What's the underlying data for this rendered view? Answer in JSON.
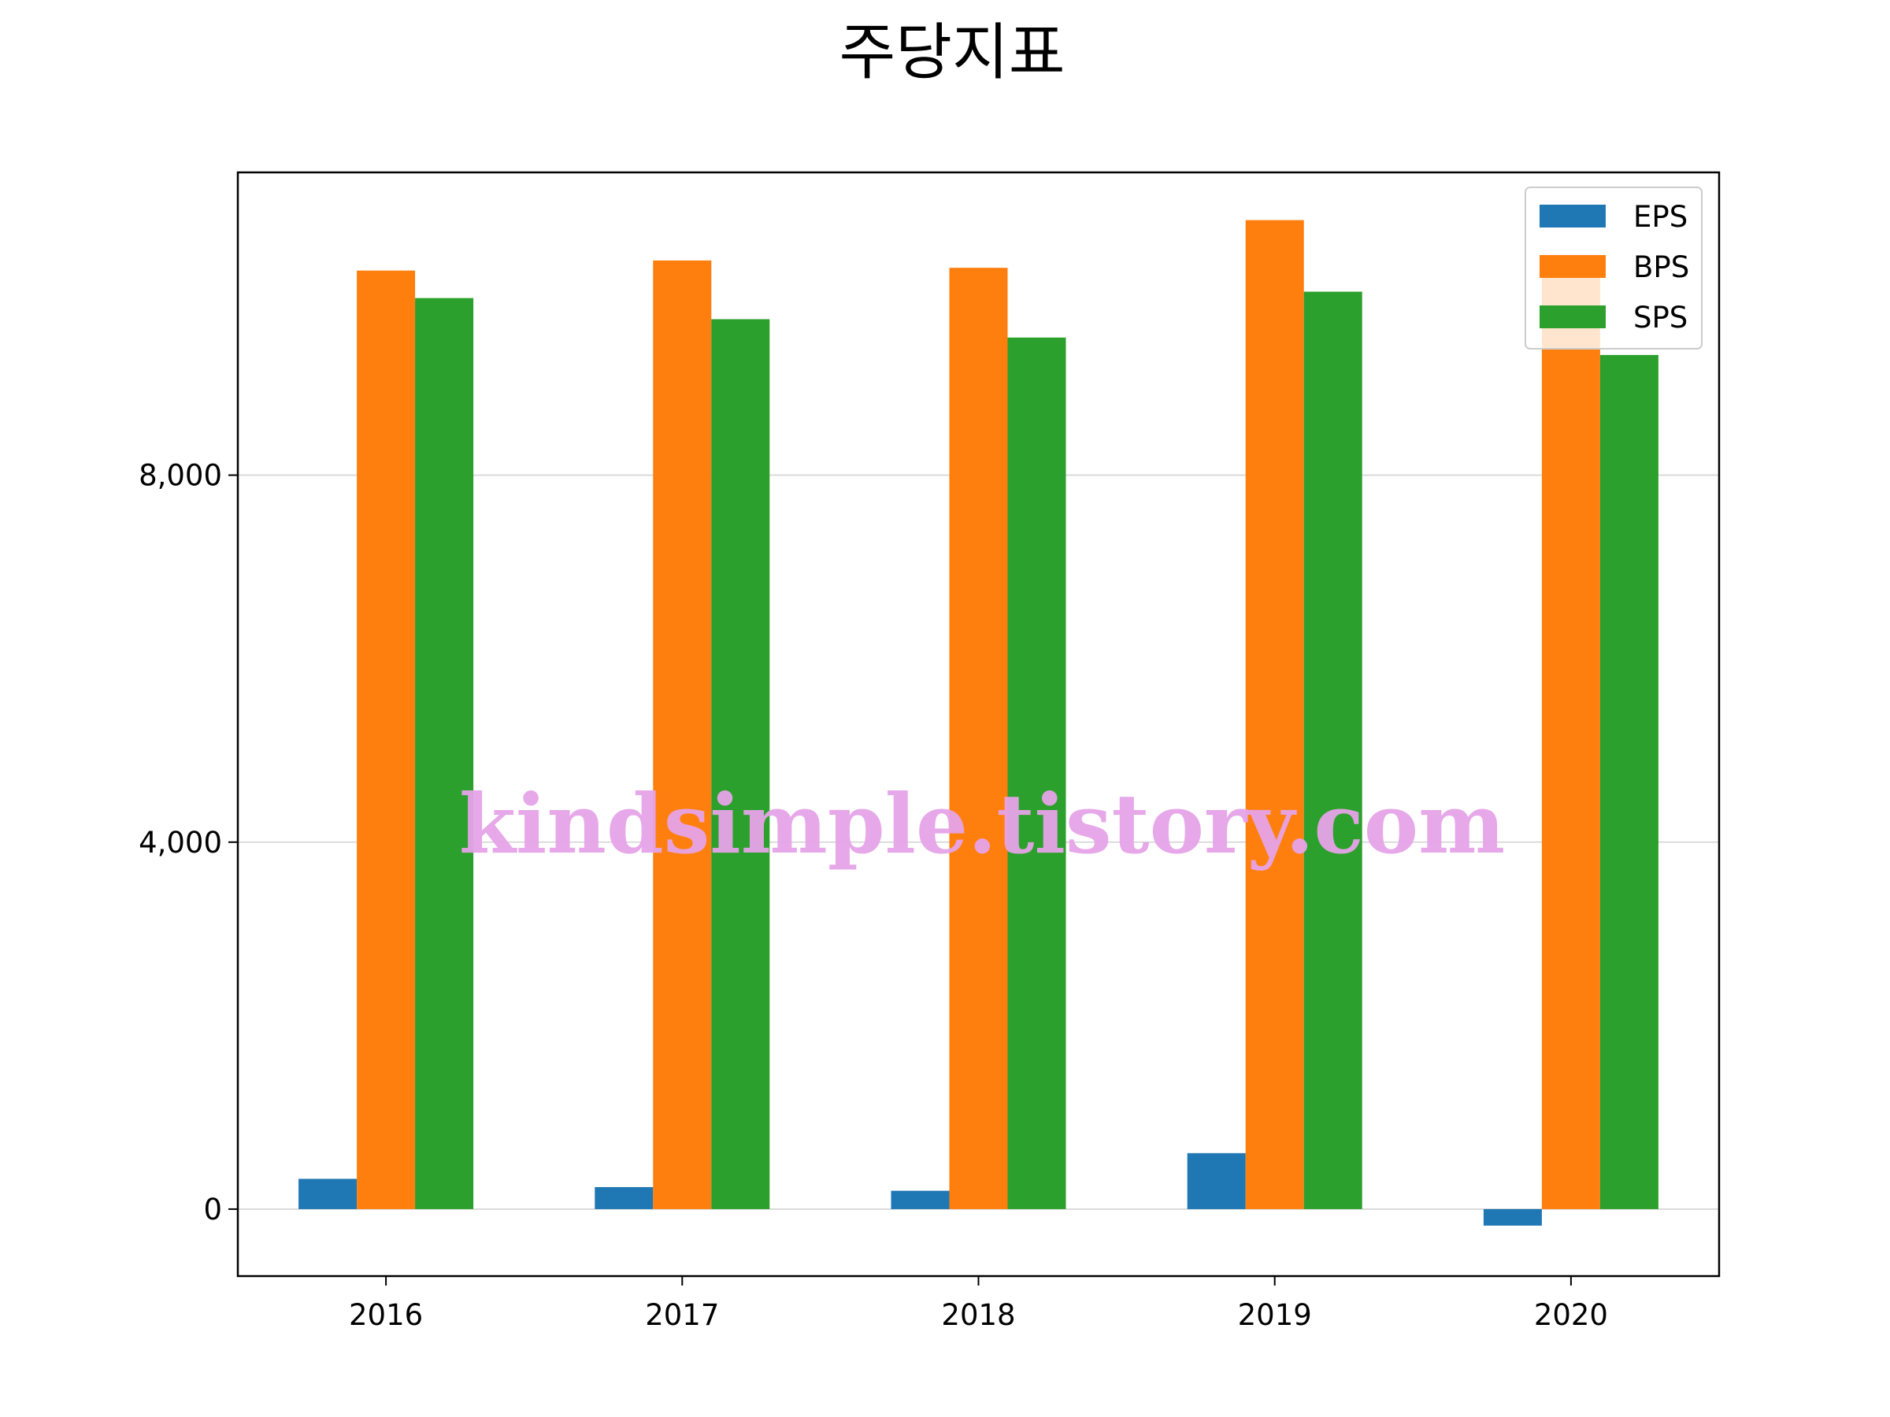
{
  "chart_data": {
    "type": "bar",
    "title": "주당지표",
    "categories": [
      "2016",
      "2017",
      "2018",
      "2019",
      "2020"
    ],
    "series": [
      {
        "name": "EPS",
        "color": "#1f77b4",
        "values": [
          330,
          240,
          200,
          610,
          -180
        ]
      },
      {
        "name": "BPS",
        "color": "#ff7f0e",
        "values": [
          10230,
          10340,
          10260,
          10780,
          10260
        ]
      },
      {
        "name": "SPS",
        "color": "#2ca02c",
        "values": [
          9930,
          9700,
          9500,
          10000,
          9310
        ]
      }
    ],
    "yticks": [
      0,
      4000,
      8000
    ],
    "ytick_labels": [
      "0",
      "4,000",
      "8,000"
    ],
    "ylim": [
      -730,
      11300
    ],
    "grid": "horizontal",
    "legend_position": "top-right",
    "watermark": "kindsimple.tistory.com"
  }
}
